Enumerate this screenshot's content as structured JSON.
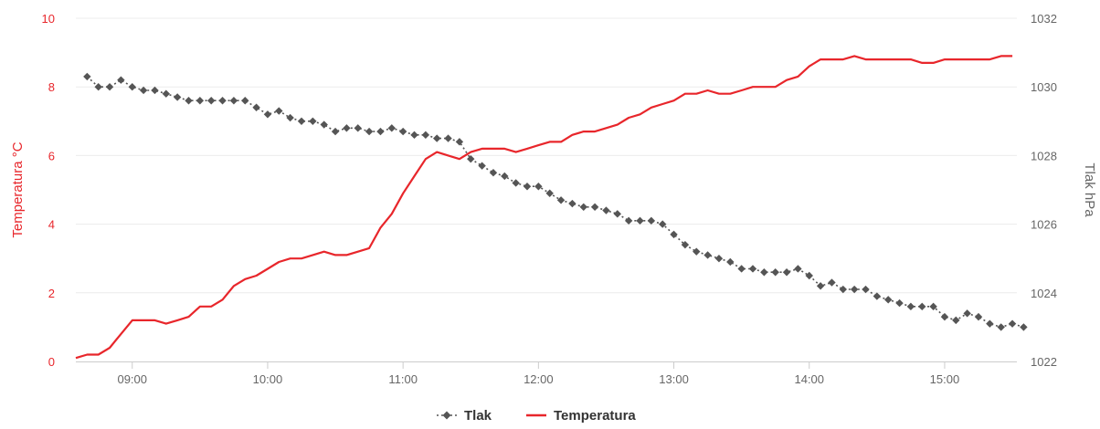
{
  "chart_data": {
    "type": "line",
    "x_ticks": [
      "09:00",
      "10:00",
      "11:00",
      "12:00",
      "13:00",
      "14:00",
      "15:00"
    ],
    "x_range": [
      "08:35",
      "15:32"
    ],
    "y_left": {
      "label": "Temperatura °C",
      "range": [
        0,
        10
      ],
      "ticks": [
        "0",
        "2",
        "4",
        "6",
        "8",
        "10"
      ],
      "color": "#e8262b"
    },
    "y_right": {
      "label": "Tlak hPa",
      "range": [
        1022,
        1032
      ],
      "ticks": [
        "1022",
        "1024",
        "1026",
        "1028",
        "1030",
        "1032"
      ],
      "color": "#666666"
    },
    "grid": true,
    "legend_position": "bottom-center",
    "series": [
      {
        "name": "Tlak",
        "axis": "right",
        "color": "#555555",
        "marker": "diamond",
        "points": [
          [
            "08:40",
            1030.3
          ],
          [
            "08:45",
            1030.0
          ],
          [
            "08:50",
            1030.0
          ],
          [
            "08:55",
            1030.2
          ],
          [
            "09:00",
            1030.0
          ],
          [
            "09:05",
            1029.9
          ],
          [
            "09:10",
            1029.9
          ],
          [
            "09:15",
            1029.8
          ],
          [
            "09:20",
            1029.7
          ],
          [
            "09:25",
            1029.6
          ],
          [
            "09:30",
            1029.6
          ],
          [
            "09:35",
            1029.6
          ],
          [
            "09:40",
            1029.6
          ],
          [
            "09:45",
            1029.6
          ],
          [
            "09:50",
            1029.6
          ],
          [
            "09:55",
            1029.4
          ],
          [
            "10:00",
            1029.2
          ],
          [
            "10:05",
            1029.3
          ],
          [
            "10:10",
            1029.1
          ],
          [
            "10:15",
            1029.0
          ],
          [
            "10:20",
            1029.0
          ],
          [
            "10:25",
            1028.9
          ],
          [
            "10:30",
            1028.7
          ],
          [
            "10:35",
            1028.8
          ],
          [
            "10:40",
            1028.8
          ],
          [
            "10:45",
            1028.7
          ],
          [
            "10:50",
            1028.7
          ],
          [
            "10:55",
            1028.8
          ],
          [
            "11:00",
            1028.7
          ],
          [
            "11:05",
            1028.6
          ],
          [
            "11:10",
            1028.6
          ],
          [
            "11:15",
            1028.5
          ],
          [
            "11:20",
            1028.5
          ],
          [
            "11:25",
            1028.4
          ],
          [
            "11:30",
            1027.9
          ],
          [
            "11:35",
            1027.7
          ],
          [
            "11:40",
            1027.5
          ],
          [
            "11:45",
            1027.4
          ],
          [
            "11:50",
            1027.2
          ],
          [
            "11:55",
            1027.1
          ],
          [
            "12:00",
            1027.1
          ],
          [
            "12:05",
            1026.9
          ],
          [
            "12:10",
            1026.7
          ],
          [
            "12:15",
            1026.6
          ],
          [
            "12:20",
            1026.5
          ],
          [
            "12:25",
            1026.5
          ],
          [
            "12:30",
            1026.4
          ],
          [
            "12:35",
            1026.3
          ],
          [
            "12:40",
            1026.1
          ],
          [
            "12:45",
            1026.1
          ],
          [
            "12:50",
            1026.1
          ],
          [
            "12:55",
            1026.0
          ],
          [
            "13:00",
            1025.7
          ],
          [
            "13:05",
            1025.4
          ],
          [
            "13:10",
            1025.2
          ],
          [
            "13:15",
            1025.1
          ],
          [
            "13:20",
            1025.0
          ],
          [
            "13:25",
            1024.9
          ],
          [
            "13:30",
            1024.7
          ],
          [
            "13:35",
            1024.7
          ],
          [
            "13:40",
            1024.6
          ],
          [
            "13:45",
            1024.6
          ],
          [
            "13:50",
            1024.6
          ],
          [
            "13:55",
            1024.7
          ],
          [
            "14:00",
            1024.5
          ],
          [
            "14:05",
            1024.2
          ],
          [
            "14:10",
            1024.3
          ],
          [
            "14:15",
            1024.1
          ],
          [
            "14:20",
            1024.1
          ],
          [
            "14:25",
            1024.1
          ],
          [
            "14:30",
            1023.9
          ],
          [
            "14:35",
            1023.8
          ],
          [
            "14:40",
            1023.7
          ],
          [
            "14:45",
            1023.6
          ],
          [
            "14:50",
            1023.6
          ],
          [
            "14:55",
            1023.6
          ],
          [
            "15:00",
            1023.3
          ],
          [
            "15:05",
            1023.2
          ],
          [
            "15:10",
            1023.4
          ],
          [
            "15:15",
            1023.3
          ],
          [
            "15:20",
            1023.1
          ],
          [
            "15:25",
            1023.0
          ],
          [
            "15:30",
            1023.1
          ],
          [
            "15:35",
            1023.0
          ]
        ]
      },
      {
        "name": "Temperatura",
        "axis": "left",
        "color": "#e8262b",
        "marker": "none",
        "points": [
          [
            "08:35",
            0.1
          ],
          [
            "08:40",
            0.2
          ],
          [
            "08:45",
            0.2
          ],
          [
            "08:50",
            0.4
          ],
          [
            "08:55",
            0.8
          ],
          [
            "09:00",
            1.2
          ],
          [
            "09:05",
            1.2
          ],
          [
            "09:10",
            1.2
          ],
          [
            "09:15",
            1.1
          ],
          [
            "09:20",
            1.2
          ],
          [
            "09:25",
            1.3
          ],
          [
            "09:30",
            1.6
          ],
          [
            "09:35",
            1.6
          ],
          [
            "09:40",
            1.8
          ],
          [
            "09:45",
            2.2
          ],
          [
            "09:50",
            2.4
          ],
          [
            "09:55",
            2.5
          ],
          [
            "10:00",
            2.7
          ],
          [
            "10:05",
            2.9
          ],
          [
            "10:10",
            3.0
          ],
          [
            "10:15",
            3.0
          ],
          [
            "10:20",
            3.1
          ],
          [
            "10:25",
            3.2
          ],
          [
            "10:30",
            3.1
          ],
          [
            "10:35",
            3.1
          ],
          [
            "10:40",
            3.2
          ],
          [
            "10:45",
            3.3
          ],
          [
            "10:50",
            3.9
          ],
          [
            "10:55",
            4.3
          ],
          [
            "11:00",
            4.9
          ],
          [
            "11:05",
            5.4
          ],
          [
            "11:10",
            5.9
          ],
          [
            "11:15",
            6.1
          ],
          [
            "11:20",
            6.0
          ],
          [
            "11:25",
            5.9
          ],
          [
            "11:30",
            6.1
          ],
          [
            "11:35",
            6.2
          ],
          [
            "11:40",
            6.2
          ],
          [
            "11:45",
            6.2
          ],
          [
            "11:50",
            6.1
          ],
          [
            "11:55",
            6.2
          ],
          [
            "12:00",
            6.3
          ],
          [
            "12:05",
            6.4
          ],
          [
            "12:10",
            6.4
          ],
          [
            "12:15",
            6.6
          ],
          [
            "12:20",
            6.7
          ],
          [
            "12:25",
            6.7
          ],
          [
            "12:30",
            6.8
          ],
          [
            "12:35",
            6.9
          ],
          [
            "12:40",
            7.1
          ],
          [
            "12:45",
            7.2
          ],
          [
            "12:50",
            7.4
          ],
          [
            "12:55",
            7.5
          ],
          [
            "13:00",
            7.6
          ],
          [
            "13:05",
            7.8
          ],
          [
            "13:10",
            7.8
          ],
          [
            "13:15",
            7.9
          ],
          [
            "13:20",
            7.8
          ],
          [
            "13:25",
            7.8
          ],
          [
            "13:30",
            7.9
          ],
          [
            "13:35",
            8.0
          ],
          [
            "13:40",
            8.0
          ],
          [
            "13:45",
            8.0
          ],
          [
            "13:50",
            8.2
          ],
          [
            "13:55",
            8.3
          ],
          [
            "14:00",
            8.6
          ],
          [
            "14:05",
            8.8
          ],
          [
            "14:10",
            8.8
          ],
          [
            "14:15",
            8.8
          ],
          [
            "14:20",
            8.9
          ],
          [
            "14:25",
            8.8
          ],
          [
            "14:30",
            8.8
          ],
          [
            "14:35",
            8.8
          ],
          [
            "14:40",
            8.8
          ],
          [
            "14:45",
            8.8
          ],
          [
            "14:50",
            8.7
          ],
          [
            "14:55",
            8.7
          ],
          [
            "15:00",
            8.8
          ],
          [
            "15:05",
            8.8
          ],
          [
            "15:10",
            8.8
          ],
          [
            "15:15",
            8.8
          ],
          [
            "15:20",
            8.8
          ],
          [
            "15:25",
            8.9
          ],
          [
            "15:30",
            8.9
          ]
        ]
      }
    ]
  }
}
